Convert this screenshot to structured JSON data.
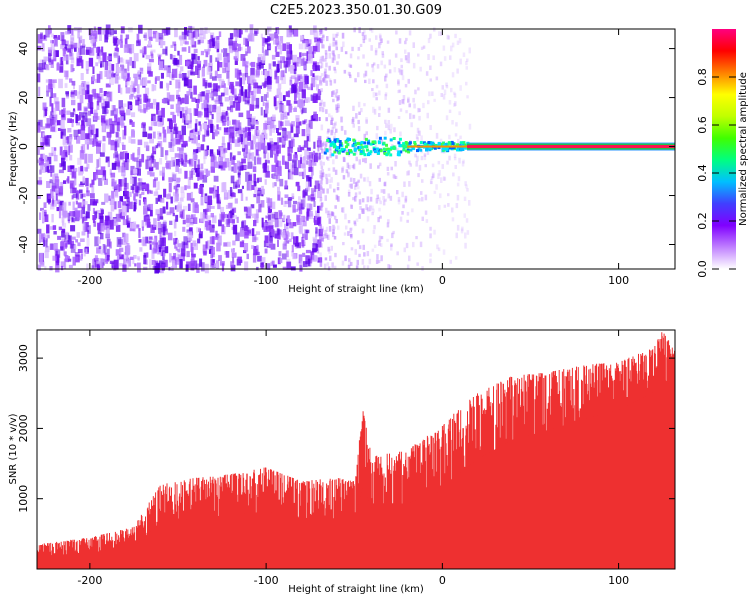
{
  "title": "C2E5.2023.350.01.30.G09",
  "chart_data": [
    {
      "type": "heatmap",
      "xlabel": "Height of straight line (km)",
      "ylabel": "Frequency (Hz)",
      "xlim": [
        -230,
        132
      ],
      "ylim": [
        -50,
        48
      ],
      "x_ticks": [
        -200,
        -100,
        0,
        100
      ],
      "x_tick_labels": [
        "-200",
        "-100",
        "0",
        "100"
      ],
      "y_ticks": [
        40,
        20,
        0,
        -20,
        -40
      ],
      "y_tick_labels": [
        "40",
        "20",
        "0",
        "-20",
        "-40"
      ],
      "grid": false,
      "colorbar": {
        "label": "Normalized spectral amplitude",
        "range": [
          0,
          1
        ],
        "ticks": [
          0.0,
          0.2,
          0.4,
          0.6,
          0.8
        ],
        "tick_labels": [
          "0.0",
          "0.2",
          "0.4",
          "0.6",
          "0.8"
        ],
        "colors": [
          "#ffffff",
          "#c080ff",
          "#8000ff",
          "#4040ff",
          "#00c0ff",
          "#00ff80",
          "#40ff00",
          "#c0ff00",
          "#ffff00",
          "#ff8000",
          "#ff0000",
          "#ff0080"
        ]
      },
      "signal_line": {
        "x_start": 14,
        "x_end": 132,
        "frequency": 0
      },
      "noise_region": {
        "x_start": -230,
        "x_end": -70
      },
      "blob_region": {
        "x_start": -68,
        "x_end": 14
      }
    },
    {
      "type": "area",
      "xlabel": "Height of straight line (km)",
      "ylabel": "SNR (10 * v/v)",
      "xlim": [
        -230,
        132
      ],
      "ylim": [
        0,
        3400
      ],
      "x_ticks": [
        -200,
        -100,
        0,
        100
      ],
      "x_tick_labels": [
        "-200",
        "-100",
        "0",
        "100"
      ],
      "y_ticks": [
        1000,
        2000,
        3000
      ],
      "y_tick_labels": [
        "1000",
        "2000",
        "3000"
      ],
      "color": "#ee3030",
      "grid": false,
      "envelope": {
        "x": [
          -230,
          -200,
          -175,
          -160,
          -140,
          -120,
          -100,
          -80,
          -60,
          -50,
          -45,
          -40,
          -20,
          0,
          10,
          20,
          40,
          60,
          80,
          100,
          120,
          125,
          132
        ],
        "top": [
          350,
          450,
          600,
          1200,
          1300,
          1350,
          1450,
          1250,
          1300,
          1250,
          2250,
          1600,
          1700,
          2050,
          2300,
          2500,
          2750,
          2800,
          2900,
          2950,
          3150,
          3400,
          3150
        ],
        "bottom": [
          50,
          50,
          100,
          200,
          250,
          300,
          300,
          300,
          250,
          200,
          300,
          250,
          300,
          350,
          600,
          800,
          1100,
          1300,
          1500,
          1700,
          2000,
          2200,
          2000
        ]
      }
    }
  ]
}
